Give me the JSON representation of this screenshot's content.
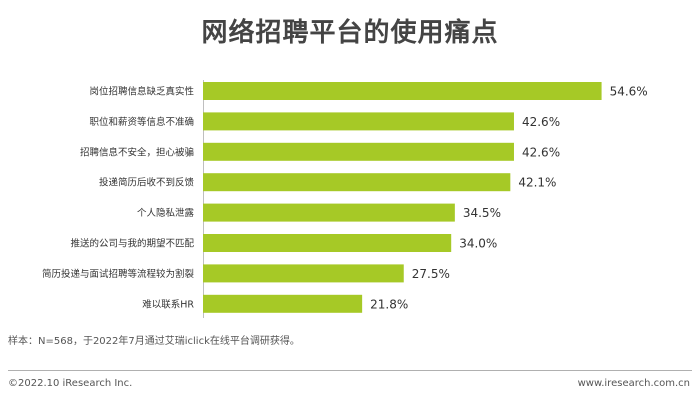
{
  "title": "网络招聘平台的使用痛点",
  "note": "样本：N=568，于2022年7月通过艾瑞iclick在线平台调研获得。",
  "footer": {
    "copyright": "©2022.10 iResearch Inc.",
    "website": "www.iresearch.com.cn"
  },
  "colors": {
    "bar": "#a6c926",
    "axis": "#bfbfbf"
  },
  "chart_data": {
    "type": "bar",
    "orientation": "horizontal",
    "title": "网络招聘平台的使用痛点",
    "categories": [
      "岗位招聘信息缺乏真实性",
      "职位和薪资等信息不准确",
      "招聘信息不安全，担心被骗",
      "投递简历后收不到反馈",
      "个人隐私泄露",
      "推送的公司与我的期望不匹配",
      "简历投递与面试招聘等流程较为割裂",
      "难以联系HR"
    ],
    "values": [
      54.6,
      42.6,
      42.6,
      42.1,
      34.5,
      34.0,
      27.5,
      21.8
    ],
    "value_labels": [
      "54.6%",
      "42.6%",
      "42.6%",
      "42.1%",
      "34.5%",
      "34.0%",
      "27.5%",
      "21.8%"
    ],
    "xlim": [
      0,
      60
    ],
    "grid": false,
    "legend": "none"
  }
}
